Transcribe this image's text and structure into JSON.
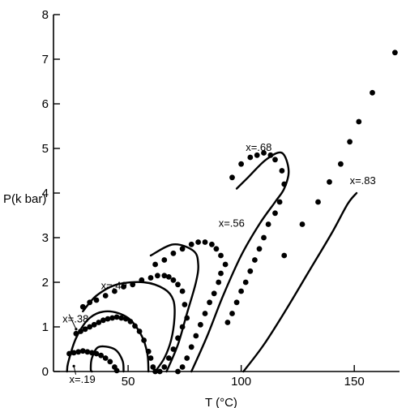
{
  "chart_data": {
    "type": "scatter",
    "xlabel": "T (°C)",
    "ylabel": "P(k bar)",
    "xlim": [
      17,
      170
    ],
    "ylim": [
      0,
      8
    ],
    "xticks": [
      {
        "value": 50,
        "label": "50"
      },
      {
        "value": 100,
        "label": "100"
      },
      {
        "value": 150,
        "label": "150"
      }
    ],
    "yticks": [
      {
        "value": 0,
        "label": "0"
      },
      {
        "value": 1,
        "label": "1"
      },
      {
        "value": 2,
        "label": "2"
      },
      {
        "value": 3,
        "label": "3"
      },
      {
        "value": 4,
        "label": "4"
      },
      {
        "value": 5,
        "label": "5"
      },
      {
        "value": 6,
        "label": "6"
      },
      {
        "value": 7,
        "label": "7"
      },
      {
        "value": 8,
        "label": "8"
      }
    ],
    "grid": false,
    "colors": {
      "curve": "#000000",
      "points": "#000000"
    },
    "series": [
      {
        "name": "x=.19",
        "label_value": {
          "x": 24,
          "y": -0.25
        },
        "label_arrow": {
          "x": 26,
          "y": 0.12
        },
        "curve": [
          [
            48,
            0
          ],
          [
            47.5,
            0.25
          ],
          [
            44,
            0.5
          ],
          [
            37,
            0.55
          ],
          [
            34,
            0.3
          ],
          [
            33.5,
            0.05
          ],
          [
            34,
            0
          ]
        ],
        "points": [
          [
            24,
            0.4
          ],
          [
            26,
            0.42
          ],
          [
            28,
            0.44
          ],
          [
            30,
            0.46
          ],
          [
            32,
            0.44
          ],
          [
            34,
            0.42
          ],
          [
            36,
            0.4
          ],
          [
            38,
            0.36
          ],
          [
            40,
            0.3
          ],
          [
            42,
            0.22
          ],
          [
            44,
            0.1
          ],
          [
            45,
            0.02
          ]
        ]
      },
      {
        "name": "x=.38",
        "label_value": {
          "x": 21,
          "y": 1.1
        },
        "label_arrow": {
          "x": 27,
          "y": 0.95
        },
        "curve": [
          [
            59,
            0
          ],
          [
            58.5,
            0.4
          ],
          [
            56,
            0.8
          ],
          [
            50,
            1.2
          ],
          [
            41,
            1.35
          ],
          [
            33,
            1.2
          ],
          [
            27,
            0.75
          ],
          [
            23.5,
            0.2
          ],
          [
            23,
            0
          ]
        ],
        "points": [
          [
            27,
            0.85
          ],
          [
            29,
            0.9
          ],
          [
            31,
            0.95
          ],
          [
            33,
            1.0
          ],
          [
            35,
            1.05
          ],
          [
            37,
            1.1
          ],
          [
            39,
            1.15
          ],
          [
            41,
            1.18
          ],
          [
            43,
            1.2
          ],
          [
            45,
            1.22
          ],
          [
            47,
            1.2
          ],
          [
            49,
            1.18
          ],
          [
            51,
            1.12
          ],
          [
            53,
            1.02
          ],
          [
            55,
            0.9
          ],
          [
            57,
            0.7
          ],
          [
            59,
            0.45
          ],
          [
            60,
            0.3
          ],
          [
            61,
            0.1
          ],
          [
            62,
            0
          ]
        ]
      },
      {
        "name": "x=.49",
        "label_value": {
          "x": 38,
          "y": 1.85
        },
        "curve": [
          [
            62,
            0
          ],
          [
            66,
            0.3
          ],
          [
            69,
            0.7
          ],
          [
            70.5,
            1.2
          ],
          [
            70,
            1.6
          ],
          [
            66,
            1.85
          ],
          [
            57,
            2.0
          ],
          [
            45,
            1.95
          ],
          [
            36,
            1.7
          ],
          [
            30,
            1.35
          ]
        ],
        "points": [
          [
            30,
            1.45
          ],
          [
            33,
            1.55
          ],
          [
            36,
            1.6
          ],
          [
            40,
            1.7
          ],
          [
            44,
            1.8
          ],
          [
            48,
            1.9
          ],
          [
            52,
            1.95
          ],
          [
            56,
            2.05
          ],
          [
            60,
            2.1
          ],
          [
            63,
            2.15
          ],
          [
            66,
            2.15
          ],
          [
            68,
            2.12
          ],
          [
            70,
            2.05
          ],
          [
            72,
            1.95
          ],
          [
            74,
            1.8
          ],
          [
            75,
            1.5
          ],
          [
            76,
            1.2
          ],
          [
            74,
            1.0
          ],
          [
            72,
            0.75
          ],
          [
            70,
            0.5
          ],
          [
            68,
            0.3
          ],
          [
            66,
            0.1
          ],
          [
            64,
            0
          ]
        ]
      },
      {
        "name": "x=.56",
        "label_value": {
          "x": 90,
          "y": 3.25
        },
        "curve": [
          [
            67,
            0
          ],
          [
            72,
            0.6
          ],
          [
            76,
            1.3
          ],
          [
            80,
            2.0
          ],
          [
            81,
            2.4
          ],
          [
            79,
            2.7
          ],
          [
            70,
            2.85
          ],
          [
            60,
            2.6
          ]
        ],
        "points": [
          [
            62,
            2.4
          ],
          [
            66,
            2.5
          ],
          [
            70,
            2.65
          ],
          [
            74,
            2.75
          ],
          [
            78,
            2.85
          ],
          [
            81,
            2.9
          ],
          [
            84,
            2.9
          ],
          [
            87,
            2.85
          ],
          [
            89,
            2.75
          ],
          [
            91,
            2.6
          ],
          [
            93,
            2.4
          ],
          [
            91,
            2.2
          ],
          [
            90,
            2.0
          ],
          [
            88,
            1.75
          ],
          [
            86,
            1.55
          ],
          [
            84,
            1.3
          ],
          [
            82,
            1.05
          ],
          [
            80,
            0.8
          ],
          [
            78,
            0.55
          ],
          [
            76,
            0.3
          ],
          [
            74,
            0.1
          ],
          [
            72,
            0
          ]
        ]
      },
      {
        "name": "x=.68",
        "label_value": {
          "x": 102,
          "y": 4.95
        },
        "curve": [
          [
            78,
            0
          ],
          [
            85,
            0.8
          ],
          [
            92,
            1.7
          ],
          [
            100,
            2.6
          ],
          [
            108,
            3.3
          ],
          [
            115,
            3.8
          ],
          [
            119,
            4.1
          ],
          [
            121,
            4.5
          ],
          [
            118,
            4.9
          ],
          [
            111,
            4.75
          ],
          [
            103,
            4.35
          ],
          [
            98,
            4.1
          ]
        ],
        "points": [
          [
            96,
            4.35
          ],
          [
            100,
            4.65
          ],
          [
            104,
            4.8
          ],
          [
            107,
            4.85
          ],
          [
            110,
            4.9
          ],
          [
            113,
            4.85
          ],
          [
            115,
            4.75
          ],
          [
            118,
            4.5
          ],
          [
            119,
            4.2
          ],
          [
            117,
            3.8
          ],
          [
            115,
            3.55
          ],
          [
            112,
            3.3
          ],
          [
            110,
            3.0
          ],
          [
            108,
            2.75
          ],
          [
            106,
            2.5
          ],
          [
            104,
            2.25
          ],
          [
            102,
            2.0
          ],
          [
            100,
            1.8
          ],
          [
            98,
            1.55
          ],
          [
            96,
            1.3
          ],
          [
            94,
            1.1
          ]
        ]
      },
      {
        "name": "x=.83",
        "label_value": {
          "x": 148,
          "y": 4.2
        },
        "curve": [
          [
            101,
            0
          ],
          [
            110,
            0.6
          ],
          [
            120,
            1.4
          ],
          [
            130,
            2.25
          ],
          [
            140,
            3.1
          ],
          [
            147,
            3.75
          ],
          [
            151,
            4.0
          ]
        ],
        "points": [
          [
            119,
            2.6
          ],
          [
            127,
            3.3
          ],
          [
            134,
            3.8
          ],
          [
            139,
            4.25
          ],
          [
            144,
            4.65
          ],
          [
            148,
            5.15
          ],
          [
            152,
            5.6
          ],
          [
            158,
            6.25
          ],
          [
            168,
            7.15
          ]
        ]
      }
    ]
  }
}
